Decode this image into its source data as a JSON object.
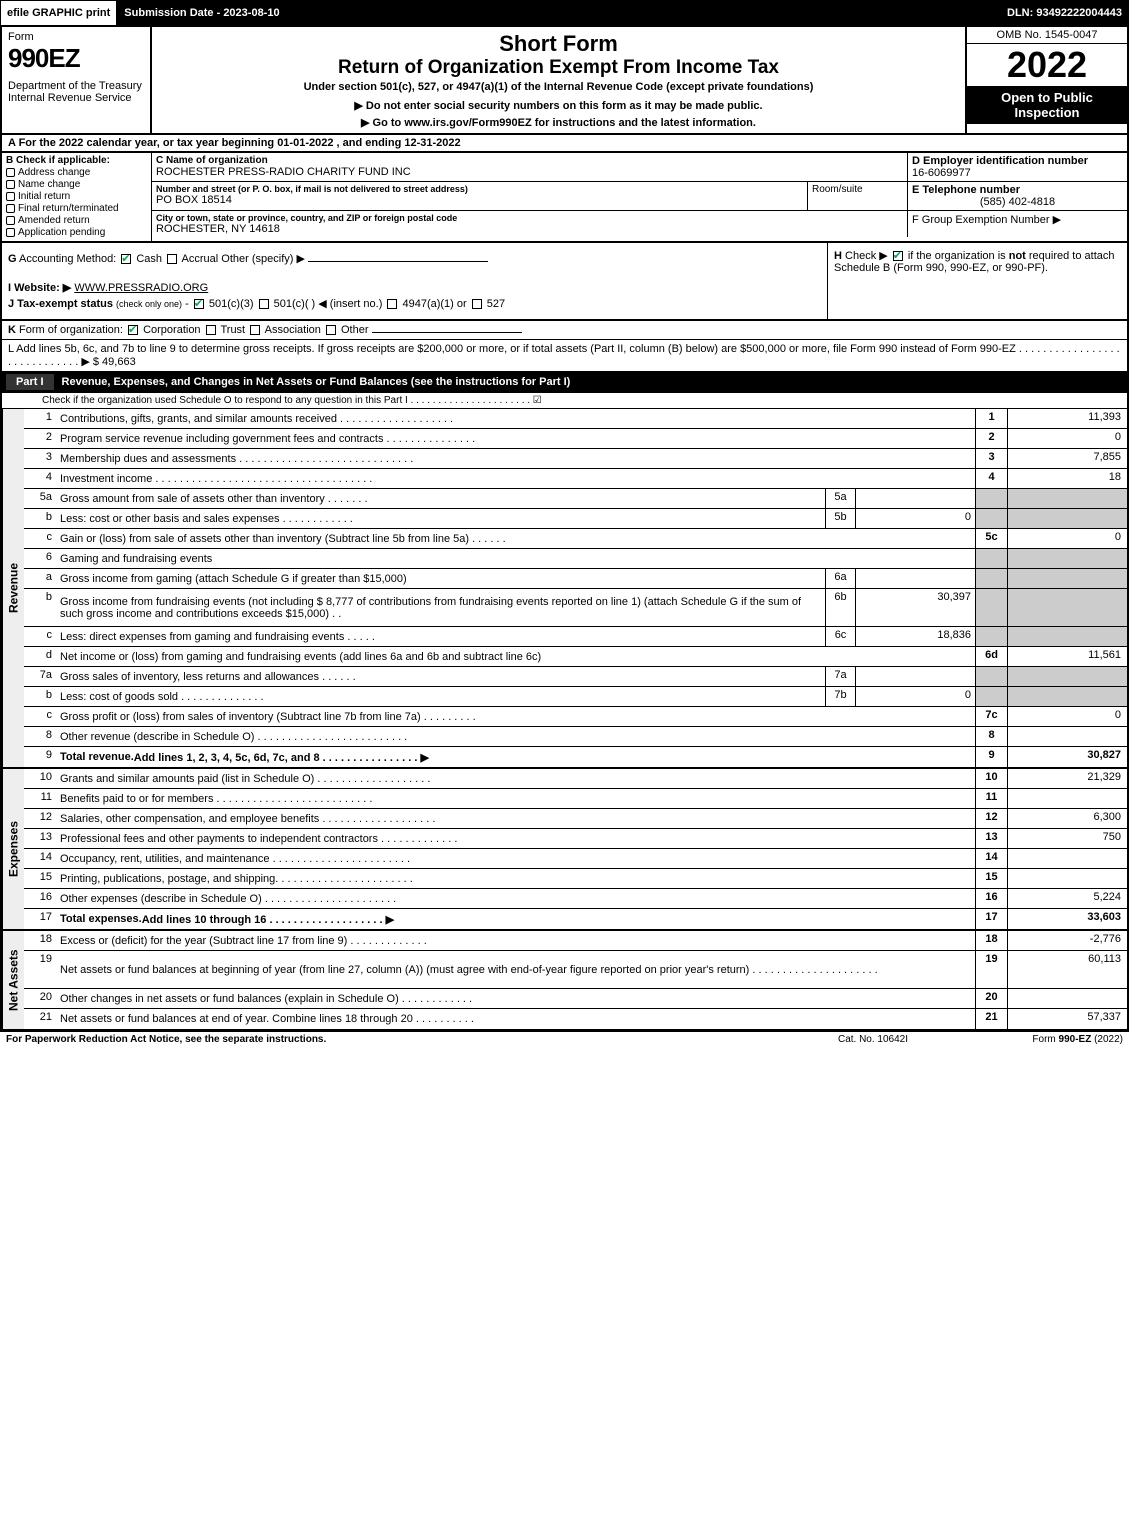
{
  "topbar": {
    "efile": "efile GRAPHIC print",
    "submission": "Submission Date - 2023-08-10",
    "dln": "DLN: 93492222004443"
  },
  "header": {
    "form_label": "Form",
    "form_number": "990EZ",
    "dept": "Department of the Treasury\nInternal Revenue Service",
    "short_form": "Short Form",
    "title": "Return of Organization Exempt From Income Tax",
    "subtitle1": "Under section 501(c), 527, or 4947(a)(1) of the Internal Revenue Code (except private foundations)",
    "subtitle2": "▶ Do not enter social security numbers on this form as it may be made public.",
    "subtitle3": "▶ Go to www.irs.gov/Form990EZ for instructions and the latest information.",
    "omb": "OMB No. 1545-0047",
    "year": "2022",
    "open": "Open to Public Inspection"
  },
  "row_a": "A  For the 2022 calendar year, or tax year beginning 01-01-2022 , and ending 12-31-2022",
  "section_b": {
    "header": "B  Check if applicable:",
    "items": [
      "Address change",
      "Name change",
      "Initial return",
      "Final return/terminated",
      "Amended return",
      "Application pending"
    ]
  },
  "section_c": {
    "name_label": "C Name of organization",
    "name": "ROCHESTER PRESS-RADIO CHARITY FUND INC",
    "addr_label": "Number and street (or P. O. box, if mail is not delivered to street address)",
    "addr": "PO BOX 18514",
    "room_label": "Room/suite",
    "city_label": "City or town, state or province, country, and ZIP or foreign postal code",
    "city": "ROCHESTER, NY  14618"
  },
  "section_d": {
    "ein_label": "D Employer identification number",
    "ein": "16-6069977",
    "phone_label": "E Telephone number",
    "phone": "(585) 402-4818",
    "group_label": "F Group Exemption Number  ▶"
  },
  "section_g": "G Accounting Method:   ☑ Cash  ☐ Accrual   Other (specify) ▶",
  "section_h": "H   Check ▶ ☑ if the organization is not required to attach Schedule B (Form 990, 990-EZ, or 990-PF).",
  "section_i": "I Website: ▶ WWW.PRESSRADIO.ORG",
  "section_j": "J Tax-exempt status (check only one) - ☑ 501(c)(3) ☐ 501(c)(  ) ◀ (insert no.) ☐ 4947(a)(1) or ☐ 527",
  "section_k": "K Form of organization:  ☑ Corporation  ☐ Trust  ☐ Association  ☐ Other",
  "section_l": {
    "text": "L Add lines 5b, 6c, and 7b to line 9 to determine gross receipts. If gross receipts are $200,000 or more, or if total assets (Part II, column (B) below) are $500,000 or more, file Form 990 instead of Form 990-EZ  .  .  .  .  .  .  .  .  .  .  .  .  .  .  .  .  .  .  .  .  .  .  .  .  .  .  .  .  .  ▶ $",
    "value": "49,663"
  },
  "part1": {
    "label": "Part I",
    "title": "Revenue, Expenses, and Changes in Net Assets or Fund Balances (see the instructions for Part I)",
    "check": "Check if the organization used Schedule O to respond to any question in this Part I  .  .  .  .  .  .  .  .  .  .  .  .  .  .  .  .  .  .  .  .  .  .  ☑"
  },
  "revenue": {
    "side_label": "Revenue",
    "rows": [
      {
        "n": "1",
        "desc": "Contributions, gifts, grants, and similar amounts received  .  .  .  .  .  .  .  .  .  .  .  .  .  .  .  .  .  .  .",
        "ln": "1",
        "val": "11,393"
      },
      {
        "n": "2",
        "desc": "Program service revenue including government fees and contracts  .  .  .  .  .  .  .  .  .  .  .  .  .  .  .",
        "ln": "2",
        "val": "0"
      },
      {
        "n": "3",
        "desc": "Membership dues and assessments  .  .  .  .  .  .  .  .  .  .  .  .  .  .  .  .  .  .  .  .  .  .  .  .  .  .  .  .  .",
        "ln": "3",
        "val": "7,855"
      },
      {
        "n": "4",
        "desc": "Investment income  .  .  .  .  .  .  .  .  .  .  .  .  .  .  .  .  .  .  .  .  .  .  .  .  .  .  .  .  .  .  .  .  .  .  .  .",
        "ln": "4",
        "val": "18"
      },
      {
        "n": "5a",
        "desc": "Gross amount from sale of assets other than inventory  .  .  .  .  .  .  .",
        "sub": "5a",
        "subval": "",
        "gray": true
      },
      {
        "n": "b",
        "desc": "Less: cost or other basis and sales expenses  .  .  .  .  .  .  .  .  .  .  .  .",
        "sub": "5b",
        "subval": "0",
        "gray": true
      },
      {
        "n": "c",
        "desc": "Gain or (loss) from sale of assets other than inventory (Subtract line 5b from line 5a)  .  .  .  .  .  .",
        "ln": "5c",
        "val": "0"
      },
      {
        "n": "6",
        "desc": "Gaming and fundraising events",
        "gray": true,
        "noval": true
      },
      {
        "n": "a",
        "desc": "Gross income from gaming (attach Schedule G if greater than $15,000)",
        "sub": "6a",
        "subval": "",
        "gray": true
      },
      {
        "n": "b",
        "desc": "Gross income from fundraising events (not including $  8,777            of contributions from fundraising events reported on line 1) (attach Schedule G if the sum of such gross income and contributions exceeds $15,000)     .   .",
        "sub": "6b",
        "subval": "30,397",
        "gray": true,
        "tall": true
      },
      {
        "n": "c",
        "desc": "Less: direct expenses from gaming and fundraising events   .  .  .  .  .",
        "sub": "6c",
        "subval": "18,836",
        "gray": true
      },
      {
        "n": "d",
        "desc": "Net income or (loss) from gaming and fundraising events (add lines 6a and 6b and subtract line 6c)",
        "ln": "6d",
        "val": "11,561"
      },
      {
        "n": "7a",
        "desc": "Gross sales of inventory, less returns and allowances  .  .  .  .  .  .",
        "sub": "7a",
        "subval": "",
        "gray": true
      },
      {
        "n": "b",
        "desc": "Less: cost of goods sold           .   .   .   .   .   .   .   .   .   .   .   .   .   .",
        "sub": "7b",
        "subval": "0",
        "gray": true
      },
      {
        "n": "c",
        "desc": "Gross profit or (loss) from sales of inventory (Subtract line 7b from line 7a)  .  .  .  .  .  .  .  .  .",
        "ln": "7c",
        "val": "0"
      },
      {
        "n": "8",
        "desc": "Other revenue (describe in Schedule O)  .  .  .  .  .  .  .  .  .  .  .  .  .  .  .  .  .  .  .  .  .  .  .  .  .",
        "ln": "8",
        "val": ""
      },
      {
        "n": "9",
        "desc": "Total revenue. Add lines 1, 2, 3, 4, 5c, 6d, 7c, and 8   .  .  .  .  .  .  .  .  .  .  .  .  .  .  .  .              ▶",
        "ln": "9",
        "val": "30,827",
        "bold": true
      }
    ]
  },
  "expenses": {
    "side_label": "Expenses",
    "rows": [
      {
        "n": "10",
        "desc": "Grants and similar amounts paid (list in Schedule O)  .  .  .  .  .  .  .  .  .  .  .  .  .  .  .  .  .  .  .",
        "ln": "10",
        "val": "21,329"
      },
      {
        "n": "11",
        "desc": "Benefits paid to or for members     .  .  .  .  .  .  .  .  .  .  .  .  .  .  .  .  .  .  .  .  .  .  .  .  .  .",
        "ln": "11",
        "val": ""
      },
      {
        "n": "12",
        "desc": "Salaries, other compensation, and employee benefits  .  .  .  .  .  .  .  .  .  .  .  .  .  .  .  .  .  .  .",
        "ln": "12",
        "val": "6,300"
      },
      {
        "n": "13",
        "desc": "Professional fees and other payments to independent contractors  .  .  .  .  .  .  .  .  .  .  .  .  .",
        "ln": "13",
        "val": "750"
      },
      {
        "n": "14",
        "desc": "Occupancy, rent, utilities, and maintenance .  .  .  .  .  .  .  .  .  .  .  .  .  .  .  .  .  .  .  .  .  .  .",
        "ln": "14",
        "val": ""
      },
      {
        "n": "15",
        "desc": "Printing, publications, postage, and shipping.  .  .  .  .  .  .  .  .  .  .  .  .  .  .  .  .  .  .  .  .  .  .",
        "ln": "15",
        "val": ""
      },
      {
        "n": "16",
        "desc": "Other expenses (describe in Schedule O)     .  .  .  .  .  .  .  .  .  .  .  .  .  .  .  .  .  .  .  .  .  .",
        "ln": "16",
        "val": "5,224"
      },
      {
        "n": "17",
        "desc": "Total expenses. Add lines 10 through 16      .  .  .  .  .  .  .  .  .  .  .  .  .  .  .  .  .  .  .        ▶",
        "ln": "17",
        "val": "33,603",
        "bold": true
      }
    ]
  },
  "netassets": {
    "side_label": "Net Assets",
    "rows": [
      {
        "n": "18",
        "desc": "Excess or (deficit) for the year (Subtract line 17 from line 9)        .  .  .  .  .  .  .  .  .  .  .  .  .",
        "ln": "18",
        "val": "-2,776"
      },
      {
        "n": "19",
        "desc": "Net assets or fund balances at beginning of year (from line 27, column (A)) (must agree with end-of-year figure reported on prior year's return) .  .  .  .  .  .  .  .  .  .  .  .  .  .  .  .  .  .  .  .  .",
        "ln": "19",
        "val": "60,113",
        "tall": true
      },
      {
        "n": "20",
        "desc": "Other changes in net assets or fund balances (explain in Schedule O) .  .  .  .  .  .  .  .  .  .  .  .",
        "ln": "20",
        "val": ""
      },
      {
        "n": "21",
        "desc": "Net assets or fund balances at end of year. Combine lines 18 through 20 .  .  .  .  .  .  .  .  .  .",
        "ln": "21",
        "val": "57,337"
      }
    ]
  },
  "footer": {
    "left": "For Paperwork Reduction Act Notice, see the separate instructions.",
    "center": "Cat. No. 10642I",
    "right": "Form 990-EZ (2022)"
  }
}
